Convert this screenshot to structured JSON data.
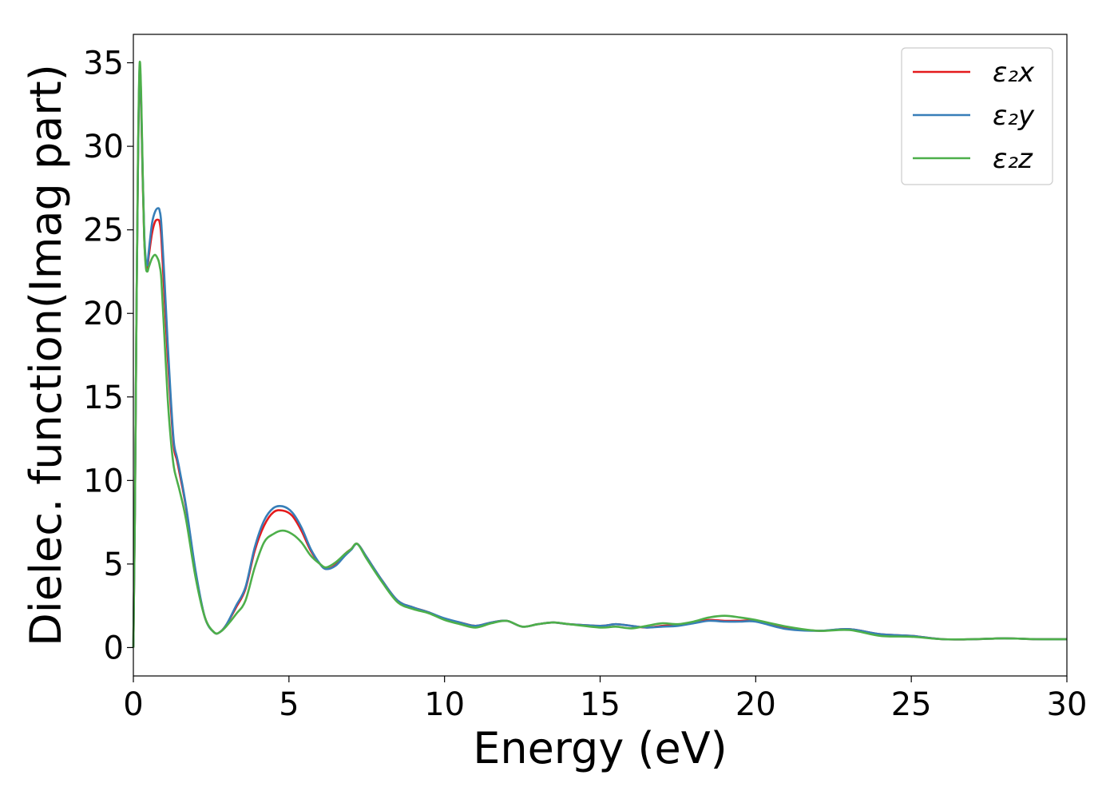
{
  "chart_data": {
    "type": "line",
    "xlabel": "Energy (eV)",
    "ylabel": "Dielec. function(Imag part)",
    "xlim": [
      0,
      30
    ],
    "ylim": [
      -1.7,
      36.7
    ],
    "xticks": [
      0,
      5,
      10,
      15,
      20,
      25,
      30
    ],
    "yticks": [
      0,
      5,
      10,
      15,
      20,
      25,
      30,
      35
    ],
    "grid": false,
    "legend_position": "top-right",
    "series": [
      {
        "name": "ε₂x",
        "color": "#e41a1c",
        "x": [
          0,
          0.05,
          0.1,
          0.15,
          0.2,
          0.25,
          0.3,
          0.35,
          0.4,
          0.45,
          0.5,
          0.6,
          0.7,
          0.8,
          0.85,
          0.9,
          1.0,
          1.1,
          1.2,
          1.3,
          1.4,
          1.5,
          1.7,
          2.0,
          2.3,
          2.6,
          2.8,
          3.0,
          3.3,
          3.6,
          3.9,
          4.2,
          4.5,
          4.8,
          5.1,
          5.4,
          5.7,
          6.0,
          6.2,
          6.5,
          6.8,
          7.0,
          7.2,
          7.5,
          8.0,
          8.5,
          9.0,
          9.5,
          10.0,
          10.5,
          11.0,
          11.5,
          12.0,
          12.5,
          13.0,
          13.5,
          14.0,
          15.0,
          15.5,
          16.0,
          16.5,
          17.0,
          17.5,
          18.0,
          18.5,
          19.0,
          19.5,
          20.0,
          21.0,
          22.0,
          23.0,
          24.0,
          25.0,
          26.0,
          27.0,
          28.0,
          29.0,
          30.0
        ],
        "values": [
          0,
          8,
          20,
          29,
          34.3,
          32.5,
          28,
          24.5,
          23,
          22.7,
          23.5,
          24.8,
          25.5,
          25.6,
          25.4,
          24.5,
          21,
          17.5,
          14.5,
          12,
          11.2,
          10.3,
          8.3,
          4.5,
          1.8,
          0.9,
          0.95,
          1.4,
          2.4,
          3.5,
          5.8,
          7.3,
          8.1,
          8.2,
          7.9,
          7.0,
          5.8,
          5.0,
          4.7,
          4.95,
          5.6,
          5.9,
          6.2,
          5.4,
          4.0,
          2.8,
          2.4,
          2.1,
          1.7,
          1.5,
          1.3,
          1.5,
          1.6,
          1.25,
          1.4,
          1.5,
          1.4,
          1.3,
          1.4,
          1.3,
          1.2,
          1.3,
          1.35,
          1.5,
          1.65,
          1.6,
          1.6,
          1.6,
          1.2,
          1.0,
          1.1,
          0.8,
          0.7,
          0.5,
          0.5,
          0.55,
          0.5,
          0.5
        ]
      },
      {
        "name": "ε₂y",
        "color": "#377eb8",
        "x": [
          0,
          0.05,
          0.1,
          0.15,
          0.2,
          0.25,
          0.3,
          0.35,
          0.4,
          0.45,
          0.5,
          0.6,
          0.7,
          0.8,
          0.85,
          0.9,
          1.0,
          1.1,
          1.2,
          1.3,
          1.4,
          1.5,
          1.7,
          2.0,
          2.3,
          2.6,
          2.8,
          3.0,
          3.3,
          3.6,
          3.9,
          4.2,
          4.5,
          4.8,
          5.1,
          5.4,
          5.7,
          6.0,
          6.2,
          6.5,
          6.8,
          7.0,
          7.2,
          7.5,
          8.0,
          8.5,
          9.0,
          9.5,
          10.0,
          10.5,
          11.0,
          11.5,
          12.0,
          12.5,
          13.0,
          13.5,
          14.0,
          15.0,
          15.5,
          16.0,
          16.5,
          17.0,
          17.5,
          18.0,
          18.5,
          19.0,
          19.5,
          20.0,
          21.0,
          22.0,
          23.0,
          24.0,
          25.0,
          26.0,
          27.0,
          28.0,
          29.0,
          30.0
        ],
        "values": [
          0,
          8,
          20,
          29,
          34.6,
          32.8,
          28.3,
          24.8,
          23.2,
          22.9,
          23.8,
          25.4,
          26.1,
          26.3,
          26.1,
          25.3,
          22,
          18.3,
          15,
          12.3,
          11.4,
          10.5,
          8.4,
          4.6,
          1.8,
          0.9,
          0.95,
          1.4,
          2.5,
          3.6,
          6.0,
          7.6,
          8.35,
          8.45,
          8.1,
          7.2,
          5.9,
          5.0,
          4.7,
          4.9,
          5.5,
          5.85,
          6.2,
          5.4,
          4.0,
          2.8,
          2.4,
          2.1,
          1.75,
          1.5,
          1.3,
          1.5,
          1.6,
          1.25,
          1.4,
          1.5,
          1.4,
          1.3,
          1.4,
          1.3,
          1.2,
          1.25,
          1.3,
          1.45,
          1.6,
          1.55,
          1.55,
          1.55,
          1.1,
          1.0,
          1.1,
          0.8,
          0.7,
          0.5,
          0.5,
          0.55,
          0.5,
          0.5
        ]
      },
      {
        "name": "ε₂z",
        "color": "#4daf4a",
        "x": [
          0,
          0.05,
          0.1,
          0.15,
          0.2,
          0.25,
          0.3,
          0.35,
          0.4,
          0.45,
          0.5,
          0.6,
          0.7,
          0.8,
          0.85,
          0.9,
          1.0,
          1.1,
          1.2,
          1.3,
          1.4,
          1.5,
          1.7,
          2.0,
          2.3,
          2.6,
          2.8,
          3.0,
          3.3,
          3.6,
          3.9,
          4.2,
          4.5,
          4.8,
          5.1,
          5.4,
          5.7,
          6.0,
          6.2,
          6.5,
          6.8,
          7.0,
          7.2,
          7.5,
          8.0,
          8.5,
          9.0,
          9.5,
          10.0,
          10.5,
          11.0,
          11.5,
          12.0,
          12.5,
          13.0,
          13.5,
          14.0,
          15.0,
          15.5,
          16.0,
          16.5,
          17.0,
          17.5,
          18.0,
          18.5,
          19.0,
          19.5,
          20.0,
          21.0,
          22.0,
          23.0,
          24.0,
          25.0,
          26.0,
          27.0,
          28.0,
          29.0,
          30.0
        ],
        "values": [
          0,
          8,
          20,
          29.5,
          34.9,
          33.2,
          28.5,
          24.5,
          22.8,
          22.5,
          22.8,
          23.3,
          23.5,
          23.2,
          22.8,
          22,
          18.5,
          15,
          12.5,
          10.8,
          10.0,
          9.3,
          7.6,
          4.2,
          1.8,
          0.9,
          0.95,
          1.3,
          2.0,
          2.8,
          4.8,
          6.3,
          6.8,
          7.0,
          6.8,
          6.3,
          5.5,
          5.0,
          4.8,
          5.1,
          5.6,
          5.9,
          6.2,
          5.3,
          3.9,
          2.7,
          2.3,
          2.05,
          1.65,
          1.4,
          1.2,
          1.45,
          1.6,
          1.25,
          1.4,
          1.5,
          1.4,
          1.2,
          1.25,
          1.15,
          1.3,
          1.45,
          1.4,
          1.55,
          1.8,
          1.9,
          1.8,
          1.65,
          1.25,
          1.0,
          1.05,
          0.7,
          0.65,
          0.5,
          0.5,
          0.55,
          0.5,
          0.5
        ]
      }
    ]
  }
}
